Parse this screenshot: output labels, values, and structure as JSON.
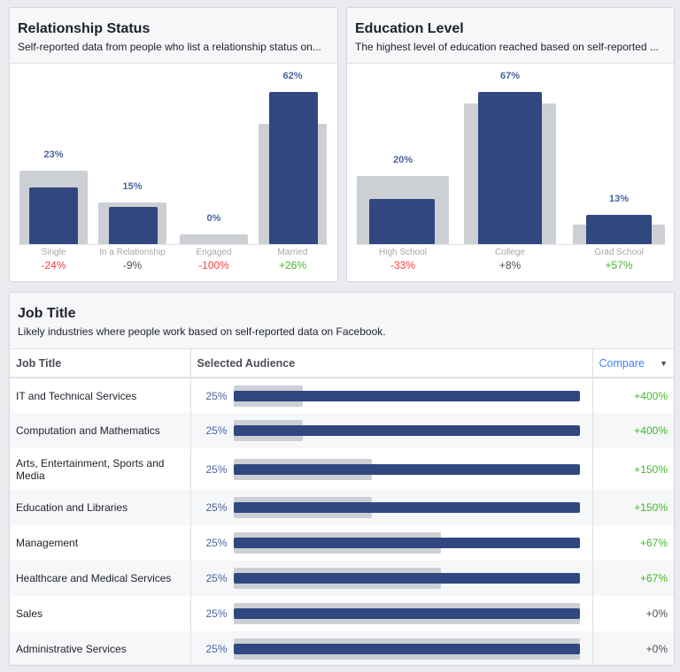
{
  "colors": {
    "selected": "#30487f",
    "benchmark": "#ccd0d5",
    "positive": "#42b72a",
    "negative": "#fa3e3e",
    "neutral": "#4b4f56",
    "link": "#4080ff"
  },
  "relationship": {
    "title": "Relationship Status",
    "subtitle": "Self-reported data from people who list a relationship status on...",
    "chart_data": {
      "type": "bar",
      "categories": [
        "Single",
        "In a Relationship",
        "Engaged",
        "Married"
      ],
      "series": [
        {
          "values": [
            23,
            15,
            0,
            62
          ]
        },
        {
          "values": [
            30,
            17,
            4,
            49
          ]
        }
      ],
      "value_labels": [
        "23%",
        "15%",
        "0%",
        "62%"
      ],
      "changes": [
        "-24%",
        "-9%",
        "-100%",
        "+26%"
      ],
      "change_signs": [
        "negative",
        "neutral",
        "negative",
        "positive"
      ]
    }
  },
  "education": {
    "title": "Education Level",
    "subtitle": "The highest level of education reached based on self-reported ...",
    "chart_data": {
      "type": "bar",
      "categories": [
        "High School",
        "College",
        "Grad School"
      ],
      "series": [
        {
          "values": [
            20,
            67,
            13
          ]
        },
        {
          "values": [
            30,
            62,
            8.5
          ]
        }
      ],
      "value_labels": [
        "20%",
        "67%",
        "13%"
      ],
      "changes": [
        "-33%",
        "+8%",
        "+57%"
      ],
      "change_signs": [
        "negative",
        "neutral",
        "positive"
      ]
    }
  },
  "jobs": {
    "title": "Job Title",
    "subtitle": "Likely industries where people work based on self-reported data on Facebook.",
    "headers": {
      "job": "Job Title",
      "selected": "Selected Audience",
      "compare": "Compare"
    },
    "rows": [
      {
        "title": "IT and Technical Services",
        "selected": "25%",
        "selected_value": 25,
        "benchmark_value": 5,
        "compare": "+400%",
        "sign": "positive"
      },
      {
        "title": "Computation and Mathematics",
        "selected": "25%",
        "selected_value": 25,
        "benchmark_value": 5,
        "compare": "+400%",
        "sign": "positive"
      },
      {
        "title": "Arts, Entertainment, Sports and Media",
        "selected": "25%",
        "selected_value": 25,
        "benchmark_value": 10,
        "compare": "+150%",
        "sign": "positive"
      },
      {
        "title": "Education and Libraries",
        "selected": "25%",
        "selected_value": 25,
        "benchmark_value": 10,
        "compare": "+150%",
        "sign": "positive"
      },
      {
        "title": "Management",
        "selected": "25%",
        "selected_value": 25,
        "benchmark_value": 15,
        "compare": "+67%",
        "sign": "positive"
      },
      {
        "title": "Healthcare and Medical Services",
        "selected": "25%",
        "selected_value": 25,
        "benchmark_value": 15,
        "compare": "+67%",
        "sign": "positive"
      },
      {
        "title": "Sales",
        "selected": "25%",
        "selected_value": 25,
        "benchmark_value": 25,
        "compare": "+0%",
        "sign": "neutral"
      },
      {
        "title": "Administrative Services",
        "selected": "25%",
        "selected_value": 25,
        "benchmark_value": 25,
        "compare": "+0%",
        "sign": "neutral"
      }
    ]
  }
}
